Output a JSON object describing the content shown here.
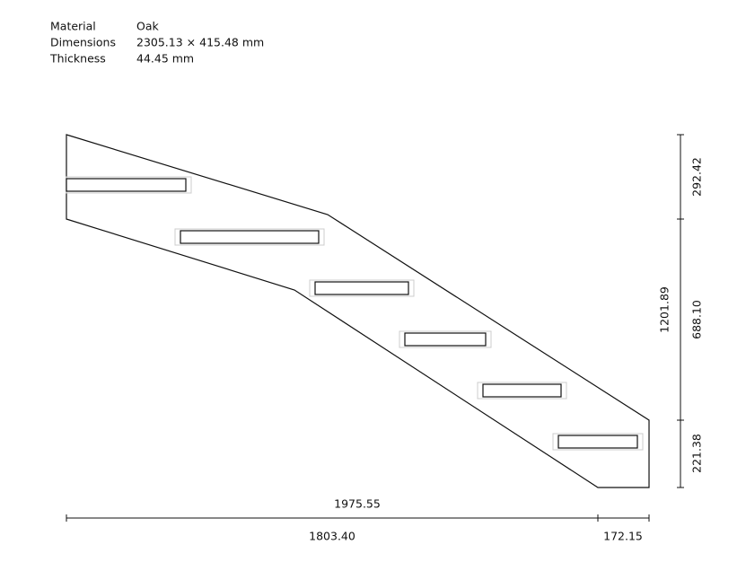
{
  "header": {
    "rows": [
      [
        "Material",
        "Oak"
      ],
      [
        "Dimensions",
        "2305.13 × 415.48 mm"
      ],
      [
        "Thickness",
        "44.45 mm"
      ]
    ]
  },
  "dimensions": {
    "right": [
      "292.42",
      "688.10",
      "221.38"
    ],
    "right_total": "1201.89",
    "bottom_total": "1975.55",
    "bottom": [
      "1803.40",
      "172.15"
    ]
  }
}
